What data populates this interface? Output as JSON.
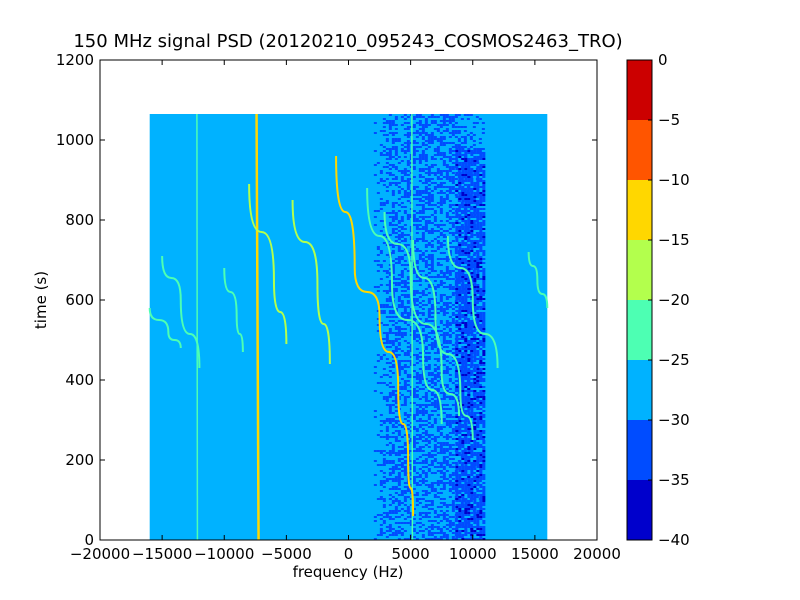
{
  "chart_data": {
    "type": "heatmap",
    "title": "150 MHz signal PSD (20120210_095243_COSMOS2463_TRO)",
    "xlabel": "frequency (Hz)",
    "ylabel": "time (s)",
    "xlim": [
      -20000,
      20000
    ],
    "ylim": [
      0,
      1200
    ],
    "xticks": [
      -20000,
      -15000,
      -10000,
      -5000,
      0,
      5000,
      10000,
      15000,
      20000
    ],
    "xtick_labels": [
      "−20000",
      "−15000",
      "−10000",
      "−5000",
      "0",
      "5000",
      "10000",
      "15000",
      "20000"
    ],
    "yticks": [
      0,
      200,
      400,
      600,
      800,
      1000,
      1200
    ],
    "ytick_labels": [
      "0",
      "200",
      "400",
      "600",
      "800",
      "1000",
      "1200"
    ],
    "data_extent": {
      "freq": [
        -16000,
        16000
      ],
      "time": [
        0,
        1065
      ]
    },
    "colorbar": {
      "levels": [
        -40,
        -35,
        -30,
        -25,
        -20,
        -15,
        -10,
        -5,
        0
      ],
      "tick_labels": [
        "−40",
        "−35",
        "−30",
        "−25",
        "−20",
        "−15",
        "−10",
        "−5",
        "0"
      ],
      "colors": [
        "#0000cc",
        "#004cff",
        "#00b2ff",
        "#4dffb3",
        "#b3ff4d",
        "#ffd700",
        "#ff5500",
        "#cc0000"
      ]
    },
    "background_level": -27.5,
    "noisy_band": {
      "freq": [
        1800,
        11000
      ],
      "level": -32.5
    },
    "deep_band": {
      "freq": [
        8600,
        10800
      ],
      "time": [
        0,
        980
      ],
      "level": -37.5
    },
    "vertical_lines": [
      {
        "freq": -12200,
        "level": -22.5
      },
      {
        "freq": -7400,
        "level": -12.5
      },
      {
        "freq": 5100,
        "level": -22.5
      }
    ],
    "doppler_tracks": [
      {
        "freq_points": [
          -16000,
          -14500,
          -13500
        ],
        "time_points": [
          580,
          520,
          480
        ],
        "level": -22.5
      },
      {
        "freq_points": [
          -15000,
          -13500,
          -12000
        ],
        "time_points": [
          710,
          600,
          430
        ],
        "level": -22.5
      },
      {
        "freq_points": [
          -10000,
          -9000,
          -8500
        ],
        "time_points": [
          680,
          560,
          470
        ],
        "level": -22.5
      },
      {
        "freq_points": [
          -8000,
          -6000,
          -5000
        ],
        "time_points": [
          890,
          650,
          490
        ],
        "level": -17.5
      },
      {
        "freq_points": [
          -4500,
          -2500,
          -1500
        ],
        "time_points": [
          850,
          640,
          440
        ],
        "level": -17.5
      },
      {
        "freq_points": [
          -1000,
          500,
          2500,
          4000,
          4800,
          5200
        ],
        "time_points": [
          960,
          680,
          560,
          380,
          200,
          60
        ],
        "level": -10.0
      },
      {
        "freq_points": [
          1500,
          3500,
          6000,
          7500
        ],
        "time_points": [
          880,
          640,
          460,
          290
        ],
        "level": -22.5
      },
      {
        "freq_points": [
          2900,
          5000,
          7500,
          8900
        ],
        "time_points": [
          820,
          660,
          420,
          310
        ],
        "level": -20.0
      },
      {
        "freq_points": [
          5200,
          7000,
          9000,
          10000
        ],
        "time_points": [
          750,
          560,
          370,
          250
        ],
        "level": -22.5
      },
      {
        "freq_points": [
          8000,
          10000,
          12000
        ],
        "time_points": [
          760,
          600,
          430
        ],
        "level": -22.5
      },
      {
        "freq_points": [
          14500,
          15200,
          16000
        ],
        "time_points": [
          720,
          650,
          580
        ],
        "level": -22.5
      }
    ]
  }
}
